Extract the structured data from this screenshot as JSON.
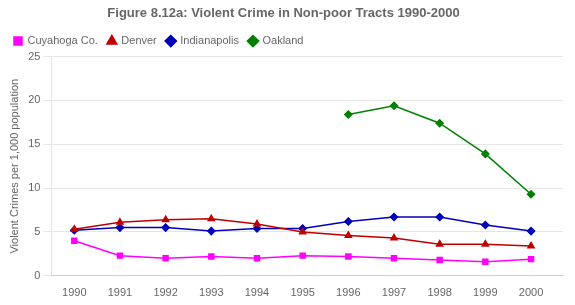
{
  "chart_data": {
    "type": "line",
    "title": "Figure 8.12a: Violent Crime in Non-poor Tracts 1990-2000",
    "ylabel": "Violent Crimes per 1,000 population",
    "x": [
      1990,
      1991,
      1992,
      1993,
      1994,
      1995,
      1996,
      1997,
      1998,
      1999,
      2000
    ],
    "series": [
      {
        "name": "Cuyahoga Co.",
        "color": "#FF00FF",
        "marker": "square",
        "values": [
          4.0,
          2.3,
          2.0,
          2.2,
          2.0,
          2.3,
          2.2,
          2.0,
          1.8,
          1.6,
          1.9
        ]
      },
      {
        "name": "Denver",
        "color": "#C00000",
        "marker": "triangle",
        "values": [
          5.3,
          6.1,
          6.4,
          6.5,
          5.9,
          5.0,
          4.6,
          4.3,
          3.6,
          3.6,
          3.4
        ]
      },
      {
        "name": "Indianapolis",
        "color": "#0000BB",
        "marker": "diamond",
        "values": [
          5.2,
          5.5,
          5.5,
          5.1,
          5.4,
          5.4,
          6.2,
          6.7,
          6.7,
          5.8,
          5.1
        ]
      },
      {
        "name": "Oakland",
        "color": "#008000",
        "marker": "diamond",
        "values": [
          null,
          null,
          null,
          null,
          null,
          null,
          18.4,
          19.4,
          17.4,
          13.9,
          9.3
        ]
      }
    ],
    "xlim": [
      1989.5,
      2000.7
    ],
    "xticks": [
      1990,
      1991,
      1992,
      1993,
      1994,
      1995,
      1996,
      1997,
      1998,
      1999,
      2000
    ],
    "ylim": [
      0,
      25
    ],
    "yticks": [
      0,
      5,
      10,
      15,
      20,
      25
    ],
    "grid": "y",
    "legend": "upper left"
  }
}
